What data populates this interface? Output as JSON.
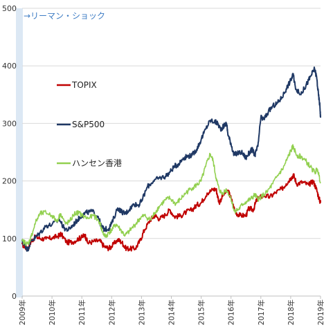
{
  "chart_data": {
    "type": "line",
    "title": "",
    "xlabel": "",
    "ylabel": "",
    "ylim": [
      0,
      500
    ],
    "yticks": [
      0,
      100,
      200,
      300,
      400,
      500
    ],
    "xlim": [
      2009.0,
      2019.0
    ],
    "x_tick_labels": [
      "2009年",
      "2010年",
      "2011年",
      "2012年",
      "2013年",
      "2014年",
      "2015年",
      "2016年",
      "2017年",
      "2018年",
      "2019年"
    ],
    "grid": "horizontal",
    "legend_position": "left",
    "annotation": {
      "text": "→リーマン・ショック",
      "x_start": 2008.85,
      "x_end": 2009.05,
      "color": "#dce8f4"
    },
    "series": [
      {
        "name": "TOPIX",
        "color": "#c00000",
        "points": [
          [
            2009.0,
            90
          ],
          [
            2009.1,
            85
          ],
          [
            2009.2,
            83
          ],
          [
            2009.3,
            95
          ],
          [
            2009.45,
            103
          ],
          [
            2009.6,
            100
          ],
          [
            2009.8,
            99
          ],
          [
            2010.0,
            101
          ],
          [
            2010.2,
            104
          ],
          [
            2010.3,
            108
          ],
          [
            2010.5,
            93
          ],
          [
            2010.7,
            94
          ],
          [
            2010.9,
            100
          ],
          [
            2011.0,
            102
          ],
          [
            2011.1,
            107
          ],
          [
            2011.2,
            92
          ],
          [
            2011.4,
            95
          ],
          [
            2011.6,
            96
          ],
          [
            2011.75,
            86
          ],
          [
            2011.9,
            83
          ],
          [
            2012.0,
            86
          ],
          [
            2012.2,
            98
          ],
          [
            2012.35,
            93
          ],
          [
            2012.45,
            84
          ],
          [
            2012.6,
            82
          ],
          [
            2012.8,
            83
          ],
          [
            2012.95,
            96
          ],
          [
            2013.1,
            115
          ],
          [
            2013.3,
            133
          ],
          [
            2013.45,
            140
          ],
          [
            2013.6,
            134
          ],
          [
            2013.8,
            141
          ],
          [
            2013.95,
            150
          ],
          [
            2014.1,
            138
          ],
          [
            2014.3,
            139
          ],
          [
            2014.5,
            146
          ],
          [
            2014.7,
            150
          ],
          [
            2014.85,
            158
          ],
          [
            2015.0,
            162
          ],
          [
            2015.2,
            179
          ],
          [
            2015.4,
            185
          ],
          [
            2015.5,
            186
          ],
          [
            2015.6,
            162
          ],
          [
            2015.75,
            177
          ],
          [
            2015.9,
            183
          ],
          [
            2016.0,
            170
          ],
          [
            2016.15,
            145
          ],
          [
            2016.3,
            140
          ],
          [
            2016.5,
            140
          ],
          [
            2016.6,
            152
          ],
          [
            2016.75,
            150
          ],
          [
            2016.85,
            166
          ],
          [
            2016.95,
            171
          ],
          [
            2017.1,
            175
          ],
          [
            2017.3,
            172
          ],
          [
            2017.5,
            180
          ],
          [
            2017.7,
            186
          ],
          [
            2017.85,
            195
          ],
          [
            2018.0,
            205
          ],
          [
            2018.1,
            210
          ],
          [
            2018.2,
            195
          ],
          [
            2018.4,
            198
          ],
          [
            2018.6,
            193
          ],
          [
            2018.75,
            200
          ],
          [
            2018.85,
            188
          ],
          [
            2018.95,
            170
          ],
          [
            2019.0,
            162
          ]
        ]
      },
      {
        "name": "S&P500",
        "color": "#1f3864",
        "points": [
          [
            2009.0,
            95
          ],
          [
            2009.1,
            88
          ],
          [
            2009.18,
            80
          ],
          [
            2009.3,
            96
          ],
          [
            2009.45,
            102
          ],
          [
            2009.6,
            110
          ],
          [
            2009.8,
            122
          ],
          [
            2010.0,
            124
          ],
          [
            2010.25,
            133
          ],
          [
            2010.4,
            118
          ],
          [
            2010.55,
            115
          ],
          [
            2010.7,
            123
          ],
          [
            2010.85,
            132
          ],
          [
            2011.0,
            140
          ],
          [
            2011.15,
            145
          ],
          [
            2011.35,
            147
          ],
          [
            2011.55,
            138
          ],
          [
            2011.65,
            121
          ],
          [
            2011.75,
            116
          ],
          [
            2011.9,
            117
          ],
          [
            2012.0,
            126
          ],
          [
            2012.2,
            153
          ],
          [
            2012.35,
            146
          ],
          [
            2012.45,
            143
          ],
          [
            2012.6,
            151
          ],
          [
            2012.75,
            160
          ],
          [
            2012.9,
            158
          ],
          [
            2013.0,
            165
          ],
          [
            2013.2,
            190
          ],
          [
            2013.4,
            200
          ],
          [
            2013.6,
            205
          ],
          [
            2013.8,
            208
          ],
          [
            2013.95,
            215
          ],
          [
            2014.1,
            225
          ],
          [
            2014.25,
            230
          ],
          [
            2014.4,
            240
          ],
          [
            2014.55,
            243
          ],
          [
            2014.7,
            245
          ],
          [
            2014.85,
            255
          ],
          [
            2015.0,
            272
          ],
          [
            2015.15,
            290
          ],
          [
            2015.3,
            305
          ],
          [
            2015.45,
            303
          ],
          [
            2015.55,
            300
          ],
          [
            2015.65,
            290
          ],
          [
            2015.75,
            295
          ],
          [
            2015.85,
            300
          ],
          [
            2015.9,
            280
          ],
          [
            2016.0,
            265
          ],
          [
            2016.1,
            245
          ],
          [
            2016.2,
            248
          ],
          [
            2016.35,
            250
          ],
          [
            2016.5,
            240
          ],
          [
            2016.6,
            248
          ],
          [
            2016.7,
            255
          ],
          [
            2016.8,
            245
          ],
          [
            2016.9,
            260
          ],
          [
            2017.0,
            310
          ],
          [
            2017.1,
            307
          ],
          [
            2017.25,
            320
          ],
          [
            2017.4,
            330
          ],
          [
            2017.55,
            335
          ],
          [
            2017.7,
            345
          ],
          [
            2017.85,
            360
          ],
          [
            2018.0,
            375
          ],
          [
            2018.08,
            385
          ],
          [
            2018.15,
            365
          ],
          [
            2018.3,
            350
          ],
          [
            2018.45,
            360
          ],
          [
            2018.6,
            375
          ],
          [
            2018.7,
            385
          ],
          [
            2018.8,
            395
          ],
          [
            2018.87,
            380
          ],
          [
            2018.93,
            350
          ],
          [
            2018.98,
            330
          ],
          [
            2019.0,
            310
          ]
        ]
      },
      {
        "name": "ハンセン香港",
        "color": "#92d050",
        "points": [
          [
            2009.0,
            95
          ],
          [
            2009.1,
            93
          ],
          [
            2009.2,
            90
          ],
          [
            2009.3,
            103
          ],
          [
            2009.45,
            128
          ],
          [
            2009.6,
            143
          ],
          [
            2009.8,
            145
          ],
          [
            2010.0,
            140
          ],
          [
            2010.15,
            130
          ],
          [
            2010.3,
            143
          ],
          [
            2010.45,
            125
          ],
          [
            2010.6,
            130
          ],
          [
            2010.75,
            143
          ],
          [
            2010.9,
            145
          ],
          [
            2011.0,
            140
          ],
          [
            2011.2,
            135
          ],
          [
            2011.4,
            140
          ],
          [
            2011.6,
            128
          ],
          [
            2011.7,
            110
          ],
          [
            2011.8,
            103
          ],
          [
            2011.9,
            110
          ],
          [
            2012.0,
            115
          ],
          [
            2012.15,
            125
          ],
          [
            2012.3,
            115
          ],
          [
            2012.45,
            105
          ],
          [
            2012.6,
            113
          ],
          [
            2012.8,
            125
          ],
          [
            2012.95,
            135
          ],
          [
            2013.1,
            140
          ],
          [
            2013.3,
            132
          ],
          [
            2013.45,
            145
          ],
          [
            2013.6,
            156
          ],
          [
            2013.8,
            167
          ],
          [
            2013.95,
            170
          ],
          [
            2014.15,
            160
          ],
          [
            2014.3,
            168
          ],
          [
            2014.5,
            180
          ],
          [
            2014.7,
            188
          ],
          [
            2014.85,
            193
          ],
          [
            2015.0,
            200
          ],
          [
            2015.15,
            225
          ],
          [
            2015.3,
            247
          ],
          [
            2015.4,
            235
          ],
          [
            2015.5,
            205
          ],
          [
            2015.6,
            185
          ],
          [
            2015.7,
            178
          ],
          [
            2015.85,
            185
          ],
          [
            2016.0,
            170
          ],
          [
            2016.1,
            148
          ],
          [
            2016.25,
            150
          ],
          [
            2016.4,
            160
          ],
          [
            2016.55,
            165
          ],
          [
            2016.7,
            170
          ],
          [
            2016.8,
            176
          ],
          [
            2016.9,
            168
          ],
          [
            2017.0,
            172
          ],
          [
            2017.2,
            180
          ],
          [
            2017.4,
            195
          ],
          [
            2017.6,
            212
          ],
          [
            2017.75,
            222
          ],
          [
            2017.9,
            240
          ],
          [
            2018.0,
            252
          ],
          [
            2018.08,
            260
          ],
          [
            2018.2,
            245
          ],
          [
            2018.35,
            242
          ],
          [
            2018.5,
            235
          ],
          [
            2018.65,
            225
          ],
          [
            2018.8,
            215
          ],
          [
            2018.9,
            220
          ],
          [
            2019.0,
            198
          ]
        ]
      }
    ]
  }
}
